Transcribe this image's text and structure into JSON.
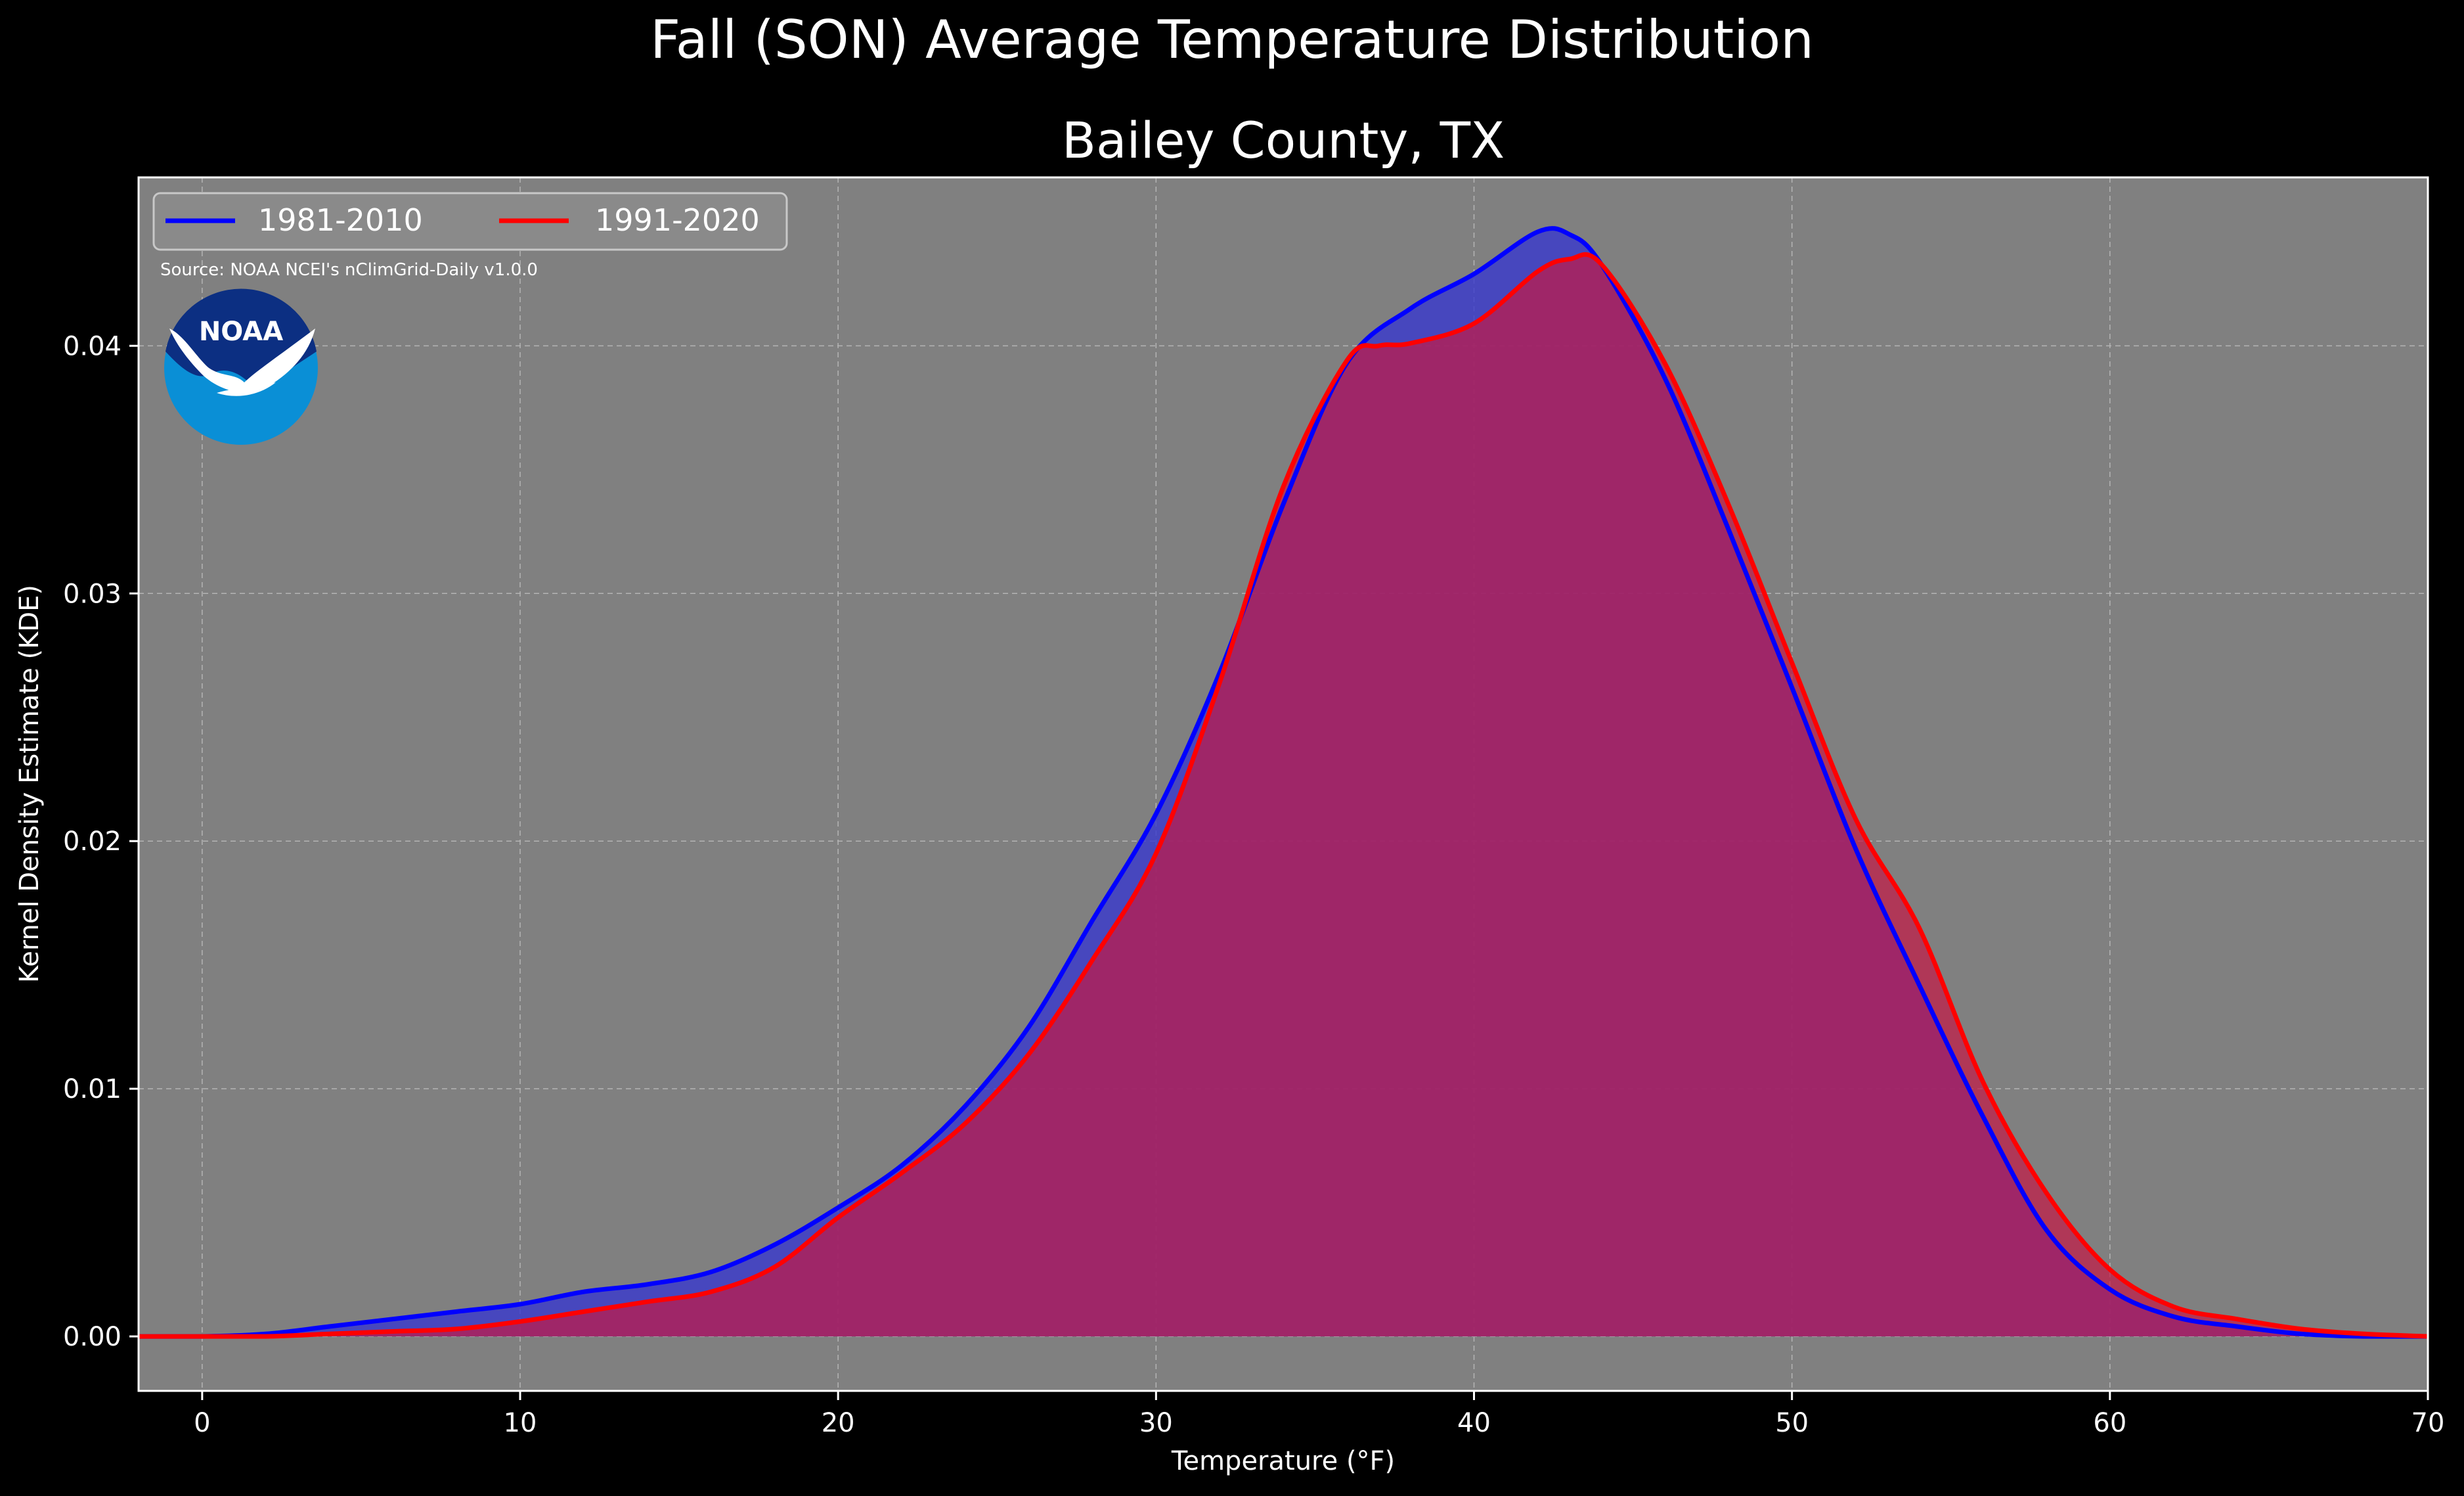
{
  "chart_data": {
    "type": "area",
    "suptitle": "Fall (SON) Average Temperature Distribution",
    "title": "Bailey County, TX",
    "xlabel": "Temperature (°F)",
    "ylabel": "Kernel Density Estimate (KDE)",
    "source": "Source: NOAA NCEI's nClimGrid-Daily v1.0.0",
    "logo_text": "NOAA",
    "xlim": [
      -2,
      70
    ],
    "ylim": [
      -0.0022,
      0.0468
    ],
    "xticks": [
      0,
      10,
      20,
      30,
      40,
      50,
      60,
      70
    ],
    "yticks": [
      0.0,
      0.01,
      0.02,
      0.03,
      0.04
    ],
    "ytick_labels": [
      "0.00",
      "0.01",
      "0.02",
      "0.03",
      "0.04"
    ],
    "grid": true,
    "legend_position": "upper-left",
    "background_color": "#808080",
    "series": [
      {
        "name": "1981-2010",
        "color": "#0000ff",
        "fill": "#3a3acc",
        "x": [
          -2,
          0,
          2,
          4,
          6,
          8,
          10,
          12,
          14,
          16,
          18,
          20,
          22,
          24,
          26,
          28,
          30,
          32,
          34,
          36,
          38,
          40,
          42,
          43,
          44,
          46,
          48,
          50,
          52,
          54,
          56,
          58,
          60,
          62,
          64,
          66,
          68,
          70
        ],
        "values": [
          0.0,
          0.0,
          0.0001,
          0.0004,
          0.0007,
          0.001,
          0.0013,
          0.0018,
          0.0021,
          0.0026,
          0.0037,
          0.0052,
          0.0069,
          0.0093,
          0.0125,
          0.0168,
          0.0211,
          0.0268,
          0.0336,
          0.0393,
          0.0415,
          0.0429,
          0.0446,
          0.0445,
          0.0433,
          0.0387,
          0.0326,
          0.0262,
          0.0197,
          0.0142,
          0.0089,
          0.0043,
          0.0019,
          0.0008,
          0.0004,
          0.0001,
          0.0,
          0.0
        ]
      },
      {
        "name": "1991-2020",
        "color": "#ff0000",
        "fill": "#c21a47",
        "x": [
          -2,
          0,
          2,
          4,
          6,
          8,
          10,
          12,
          14,
          16,
          18,
          20,
          22,
          24,
          26,
          28,
          30,
          32,
          34,
          36,
          37,
          38,
          40,
          42,
          43,
          44,
          46,
          48,
          50,
          52,
          54,
          56,
          58,
          60,
          62,
          64,
          66,
          68,
          70
        ],
        "values": [
          0.0,
          0.0,
          0.0,
          0.0001,
          0.0002,
          0.0003,
          0.0006,
          0.001,
          0.0014,
          0.0018,
          0.0028,
          0.0048,
          0.0066,
          0.0086,
          0.0114,
          0.0152,
          0.0195,
          0.0264,
          0.0343,
          0.0394,
          0.04,
          0.0401,
          0.0409,
          0.043,
          0.0435,
          0.0433,
          0.0393,
          0.0336,
          0.0272,
          0.0209,
          0.0165,
          0.0103,
          0.0058,
          0.0027,
          0.0012,
          0.0007,
          0.0003,
          0.0001,
          0.0
        ]
      }
    ]
  }
}
